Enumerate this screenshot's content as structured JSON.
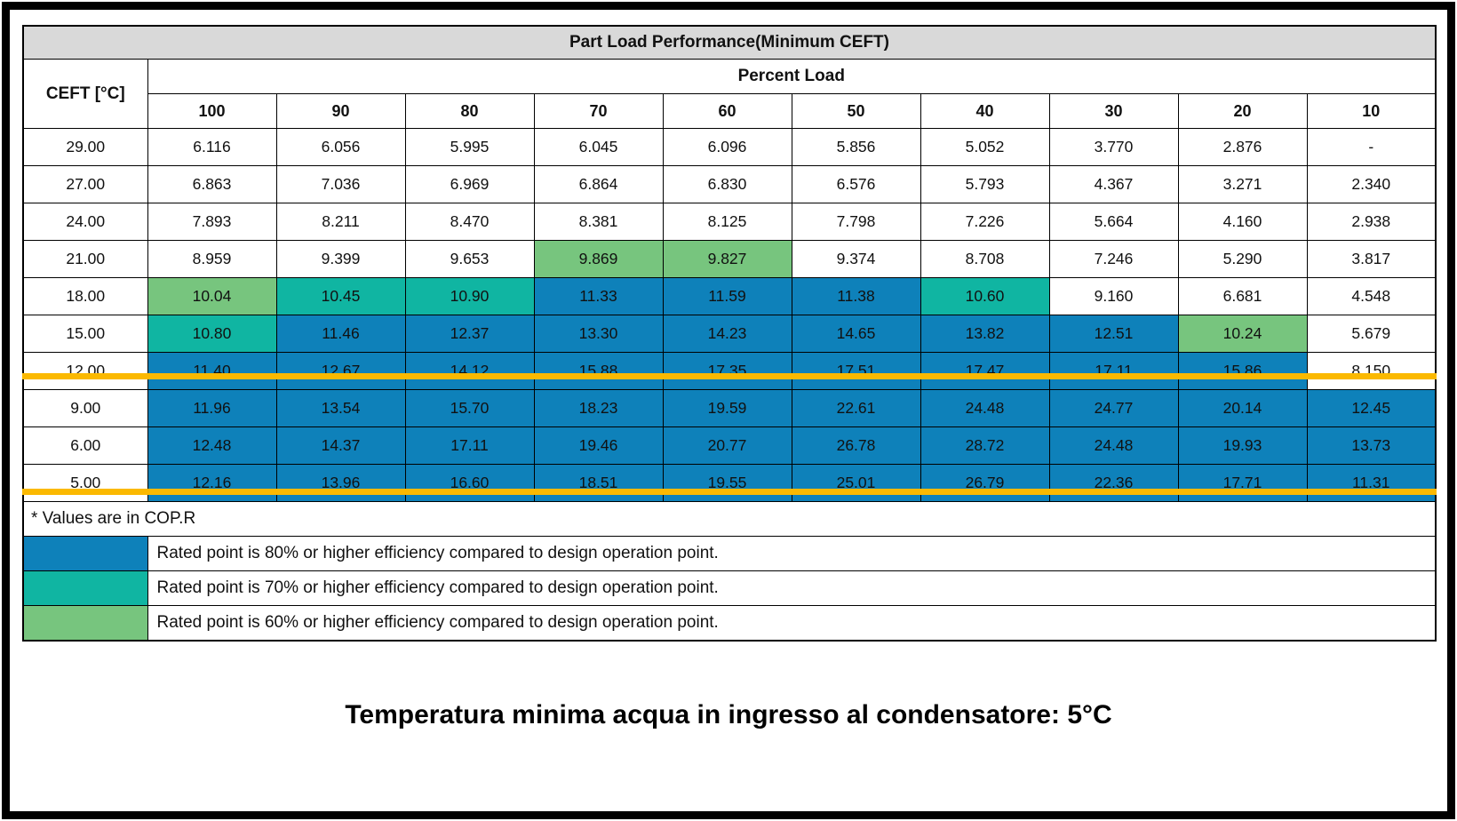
{
  "colors": {
    "blue": "#0E81BA",
    "teal": "#10B5A2",
    "green": "#77C57E",
    "header-bg": "#D9D9D9",
    "highlight": "#FBB900"
  },
  "table": {
    "title": "Part Load Performance(Minimum CEFT)",
    "ceft_header": "CEFT [°C]",
    "percent_load_header": "Percent Load",
    "columns": [
      "100",
      "90",
      "80",
      "70",
      "60",
      "50",
      "40",
      "30",
      "20",
      "10"
    ],
    "rows": [
      {
        "ceft": "29.00",
        "values": [
          "6.116",
          "6.056",
          "5.995",
          "6.045",
          "6.096",
          "5.856",
          "5.052",
          "3.770",
          "2.876",
          "-"
        ],
        "colors": [
          "w",
          "w",
          "w",
          "w",
          "w",
          "w",
          "w",
          "w",
          "w",
          "w"
        ],
        "highlight": false
      },
      {
        "ceft": "27.00",
        "values": [
          "6.863",
          "7.036",
          "6.969",
          "6.864",
          "6.830",
          "6.576",
          "5.793",
          "4.367",
          "3.271",
          "2.340"
        ],
        "colors": [
          "w",
          "w",
          "w",
          "w",
          "w",
          "w",
          "w",
          "w",
          "w",
          "w"
        ],
        "highlight": false
      },
      {
        "ceft": "24.00",
        "values": [
          "7.893",
          "8.211",
          "8.470",
          "8.381",
          "8.125",
          "7.798",
          "7.226",
          "5.664",
          "4.160",
          "2.938"
        ],
        "colors": [
          "w",
          "w",
          "w",
          "w",
          "w",
          "w",
          "w",
          "w",
          "w",
          "w"
        ],
        "highlight": false
      },
      {
        "ceft": "21.00",
        "values": [
          "8.959",
          "9.399",
          "9.653",
          "9.869",
          "9.827",
          "9.374",
          "8.708",
          "7.246",
          "5.290",
          "3.817"
        ],
        "colors": [
          "w",
          "w",
          "w",
          "g",
          "g",
          "w",
          "w",
          "w",
          "w",
          "w"
        ],
        "highlight": false
      },
      {
        "ceft": "18.00",
        "values": [
          "10.04",
          "10.45",
          "10.90",
          "11.33",
          "11.59",
          "11.38",
          "10.60",
          "9.160",
          "6.681",
          "4.548"
        ],
        "colors": [
          "g",
          "t",
          "t",
          "b",
          "b",
          "b",
          "t",
          "w",
          "w",
          "w"
        ],
        "highlight": false
      },
      {
        "ceft": "15.00",
        "values": [
          "10.80",
          "11.46",
          "12.37",
          "13.30",
          "14.23",
          "14.65",
          "13.82",
          "12.51",
          "10.24",
          "5.679"
        ],
        "colors": [
          "t",
          "b",
          "b",
          "b",
          "b",
          "b",
          "b",
          "b",
          "g",
          "w"
        ],
        "highlight": false
      },
      {
        "ceft": "12.00",
        "values": [
          "11.40",
          "12.67",
          "14.12",
          "15.88",
          "17.35",
          "17.51",
          "17.47",
          "17.11",
          "15.86",
          "8.150"
        ],
        "colors": [
          "b",
          "b",
          "b",
          "b",
          "b",
          "b",
          "b",
          "b",
          "b",
          "w"
        ],
        "highlight": false
      },
      {
        "ceft": "9.00",
        "values": [
          "11.96",
          "13.54",
          "15.70",
          "18.23",
          "19.59",
          "22.61",
          "24.48",
          "24.77",
          "20.14",
          "12.45"
        ],
        "colors": [
          "b",
          "b",
          "b",
          "b",
          "b",
          "b",
          "b",
          "b",
          "b",
          "b"
        ],
        "highlight": true
      },
      {
        "ceft": "6.00",
        "values": [
          "12.48",
          "14.37",
          "17.11",
          "19.46",
          "20.77",
          "26.78",
          "28.72",
          "24.48",
          "19.93",
          "13.73"
        ],
        "colors": [
          "b",
          "b",
          "b",
          "b",
          "b",
          "b",
          "b",
          "b",
          "b",
          "b"
        ],
        "highlight": true
      },
      {
        "ceft": "5.00",
        "values": [
          "12.16",
          "13.96",
          "16.60",
          "18.51",
          "19.55",
          "25.01",
          "26.79",
          "22.36",
          "17.71",
          "11.31"
        ],
        "colors": [
          "b",
          "b",
          "b",
          "b",
          "b",
          "b",
          "b",
          "b",
          "b",
          "b"
        ],
        "highlight": true
      }
    ],
    "footnote": "* Values are in COP.R",
    "legend": [
      {
        "color_key": "b",
        "label": "Rated point is 80% or higher efficiency compared to design operation point."
      },
      {
        "color_key": "t",
        "label": "Rated point is 70% or higher efficiency compared to design operation point."
      },
      {
        "color_key": "g",
        "label": "Rated point is 60% or higher efficiency compared to design operation point."
      }
    ]
  },
  "caption": "Temperatura minima acqua in ingresso al condensatore: 5°C"
}
